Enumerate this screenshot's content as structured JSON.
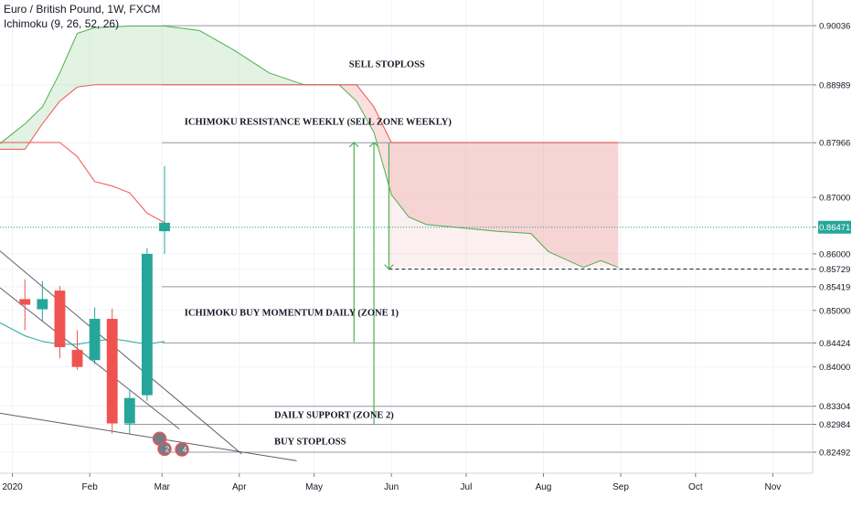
{
  "header": {
    "title": "Euro / British Pound, 1W, FXCM",
    "indicator": "Ichimoku (9, 26, 52, 26)"
  },
  "colors": {
    "bull": "#26a69a",
    "bear": "#ef5350",
    "cloud_bull_fill": "#a5d6a7",
    "cloud_bear_fill": "#ef9a9a",
    "leading_a": "#4caf50",
    "leading_b": "#ef5350",
    "lagging": "#ef5350",
    "kijun": "#26a69a",
    "current_price": "#26a69a",
    "arrow": "#4caf50"
  },
  "axis_labels": {
    "y_current": "0.86471"
  },
  "annotations": [
    {
      "text": "SELL STOPLOSS",
      "x": "2020-05-15",
      "y": 0.8937
    },
    {
      "text": "ICHIMOKU RESISTANCE WEEKLY (SELL ZONE WEEKLY)",
      "x": "2020-03-10",
      "y": 0.8835
    },
    {
      "text": "ICHIMOKU BUY MOMENTUM DAILY (ZONE 1)",
      "x": "2020-03-10",
      "y": 0.8497
    },
    {
      "text": "DAILY SUPPORT (ZONE 2)",
      "x": "2020-04-15",
      "y": 0.8316
    },
    {
      "text": "BUY STOPLOSS",
      "x": "2020-04-15",
      "y": 0.8269
    }
  ],
  "chart_data": {
    "type": "candlestick",
    "title": "Euro / British Pound, 1W, FXCM",
    "x_axis": {
      "type": "date",
      "range": [
        "2019-12-27",
        "2020-11-17"
      ],
      "ticks": [
        "2020",
        "Feb",
        "Mar",
        "Apr",
        "May",
        "Jun",
        "Jul",
        "Aug",
        "Sep",
        "Oct",
        "Nov"
      ],
      "tick_dates": [
        "2020-01-01",
        "2020-02-01",
        "2020-03-01",
        "2020-04-01",
        "2020-05-01",
        "2020-06-01",
        "2020-07-01",
        "2020-08-01",
        "2020-09-01",
        "2020-10-01",
        "2020-11-01"
      ]
    },
    "y_axis": {
      "range": [
        0.8212,
        0.9049
      ],
      "ticks": [
        "0.90036",
        "0.88989",
        "0.87966",
        "0.87000",
        "0.86471",
        "0.86000",
        "0.85729",
        "0.85419",
        "0.85000",
        "0.84424",
        "0.84000",
        "0.83304",
        "0.82984",
        "0.82492"
      ],
      "tick_values": [
        0.90036,
        0.88989,
        0.87966,
        0.87,
        0.86471,
        0.86,
        0.85729,
        0.85419,
        0.85,
        0.84424,
        0.84,
        0.83304,
        0.82984,
        0.82492
      ]
    },
    "candles": [
      {
        "date": "2020-01-06",
        "open": 0.852,
        "high": 0.8555,
        "low": 0.8465,
        "close": 0.851
      },
      {
        "date": "2020-01-13",
        "open": 0.8502,
        "high": 0.8552,
        "low": 0.8482,
        "close": 0.852
      },
      {
        "date": "2020-01-20",
        "open": 0.8535,
        "high": 0.8543,
        "low": 0.8415,
        "close": 0.8435
      },
      {
        "date": "2020-01-27",
        "open": 0.843,
        "high": 0.8465,
        "low": 0.8395,
        "close": 0.84
      },
      {
        "date": "2020-02-03",
        "open": 0.8412,
        "high": 0.8505,
        "low": 0.8405,
        "close": 0.8485
      },
      {
        "date": "2020-02-10",
        "open": 0.8485,
        "high": 0.8503,
        "low": 0.8282,
        "close": 0.83
      },
      {
        "date": "2020-02-17",
        "open": 0.83,
        "high": 0.836,
        "low": 0.8282,
        "close": 0.8345
      },
      {
        "date": "2020-02-24",
        "open": 0.835,
        "high": 0.861,
        "low": 0.834,
        "close": 0.86
      },
      {
        "date": "2020-03-02",
        "open": 0.864,
        "high": 0.8755,
        "low": 0.86,
        "close": 0.8655
      }
    ],
    "current_price": 0.86471,
    "series": [
      {
        "role": "leading_span_a",
        "color": "#4caf50",
        "points": [
          [
            "2019-12-27",
            0.8795
          ],
          [
            "2020-01-06",
            0.883
          ],
          [
            "2020-01-13",
            0.886
          ],
          [
            "2020-01-20",
            0.892
          ],
          [
            "2020-01-27",
            0.899
          ],
          [
            "2020-02-03",
            0.9
          ],
          [
            "2020-02-17",
            0.9003
          ],
          [
            "2020-03-02",
            0.9003
          ],
          [
            "2020-03-16",
            0.8995
          ],
          [
            "2020-03-30",
            0.896
          ],
          [
            "2020-04-13",
            0.892
          ],
          [
            "2020-04-27",
            0.8899
          ],
          [
            "2020-05-11",
            0.8899
          ],
          [
            "2020-05-18",
            0.887
          ],
          [
            "2020-05-25",
            0.8815
          ],
          [
            "2020-06-01",
            0.8705
          ],
          [
            "2020-06-08",
            0.8665
          ],
          [
            "2020-06-15",
            0.8652
          ],
          [
            "2020-06-29",
            0.8646
          ],
          [
            "2020-07-13",
            0.864
          ],
          [
            "2020-07-27",
            0.8636
          ],
          [
            "2020-08-03",
            0.8604
          ],
          [
            "2020-08-17",
            0.8576
          ],
          [
            "2020-08-24",
            0.8588
          ],
          [
            "2020-08-31",
            0.8576
          ]
        ]
      },
      {
        "role": "leading_span_b",
        "color": "#ef5350",
        "points": [
          [
            "2019-12-27",
            0.8785
          ],
          [
            "2020-01-06",
            0.8785
          ],
          [
            "2020-01-13",
            0.883
          ],
          [
            "2020-01-20",
            0.887
          ],
          [
            "2020-01-27",
            0.8895
          ],
          [
            "2020-02-03",
            0.8899
          ],
          [
            "2020-05-18",
            0.8899
          ],
          [
            "2020-05-25",
            0.886
          ],
          [
            "2020-06-01",
            0.8797
          ],
          [
            "2020-08-31",
            0.8797
          ]
        ]
      },
      {
        "role": "lagging_span",
        "color": "#ef5350",
        "points": [
          [
            "2019-12-27",
            0.8797
          ],
          [
            "2020-01-20",
            0.8797
          ],
          [
            "2020-01-27",
            0.8772
          ],
          [
            "2020-02-03",
            0.8728
          ],
          [
            "2020-02-10",
            0.872
          ],
          [
            "2020-02-17",
            0.8708
          ],
          [
            "2020-02-24",
            0.8672
          ],
          [
            "2020-03-02",
            0.8655
          ]
        ]
      },
      {
        "role": "base_line",
        "color": "#26a69a",
        "points": [
          [
            "2019-12-27",
            0.8478
          ],
          [
            "2020-01-06",
            0.8455
          ],
          [
            "2020-01-13",
            0.8445
          ],
          [
            "2020-01-20",
            0.844
          ],
          [
            "2020-01-27",
            0.844
          ],
          [
            "2020-02-03",
            0.8445
          ],
          [
            "2020-02-10",
            0.845
          ],
          [
            "2020-02-17",
            0.8445
          ],
          [
            "2020-02-24",
            0.844
          ],
          [
            "2020-03-02",
            0.8445
          ]
        ]
      }
    ],
    "horizontal_levels": [
      {
        "y": 0.90036,
        "from": "2020-03-01"
      },
      {
        "y": 0.88989,
        "from": "2020-03-01"
      },
      {
        "y": 0.87966,
        "from": "2020-03-01"
      },
      {
        "y": 0.85729,
        "from": "2020-05-31",
        "dashed": true
      },
      {
        "y": 0.85419,
        "from": "2020-03-01"
      },
      {
        "y": 0.84424,
        "from": "2020-03-01"
      },
      {
        "y": 0.83304,
        "from": "2020-02-15"
      },
      {
        "y": 0.82984,
        "from": "2020-02-15"
      },
      {
        "y": 0.82492,
        "from": "2020-03-01"
      }
    ],
    "trendlines": [
      {
        "from": [
          "2019-12-27",
          0.8605
        ],
        "to": [
          "2020-04-02",
          0.8246
        ]
      },
      {
        "from": [
          "2019-12-27",
          0.8318
        ],
        "to": [
          "2020-04-24",
          0.8234
        ]
      },
      {
        "from": [
          "2019-12-27",
          0.854
        ],
        "to": [
          "2020-03-08",
          0.829
        ]
      }
    ],
    "sell_zone": {
      "from": "2020-05-31",
      "to": "2020-08-31",
      "top": 0.8797,
      "bottom": 0.8576
    },
    "arrows": [
      {
        "x": "2020-05-17",
        "from": 0.8444,
        "to": 0.8797
      },
      {
        "x": "2020-05-25",
        "from": 0.8298,
        "to": 0.8797
      },
      {
        "x": "2020-05-31",
        "from": 0.8797,
        "to": 0.8573
      }
    ],
    "markers": [
      {
        "date": "2020-02-29",
        "y": 0.8273,
        "label": ""
      },
      {
        "date": "2020-03-02",
        "y": 0.8255,
        "label": "2"
      },
      {
        "date": "2020-03-09",
        "y": 0.8254,
        "label": "4"
      }
    ]
  }
}
